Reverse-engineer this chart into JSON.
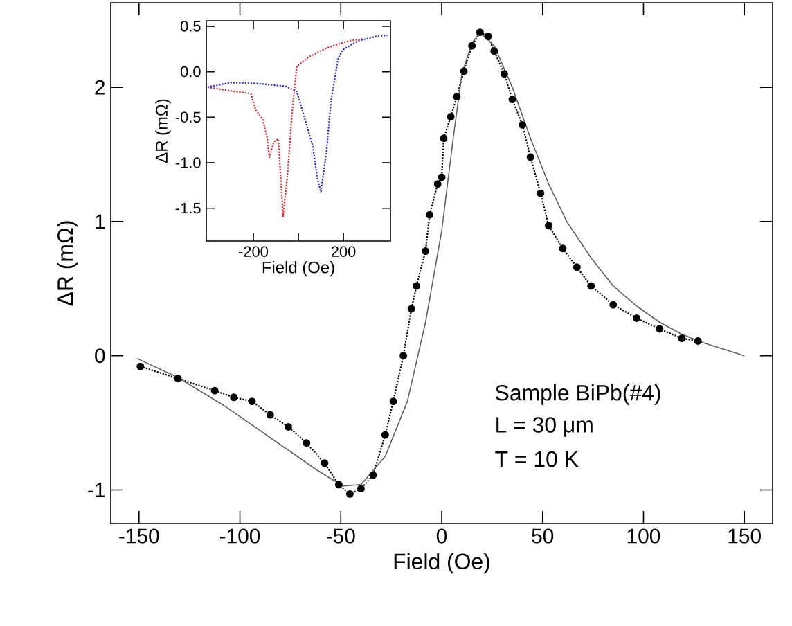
{
  "chart_data": [
    {
      "type": "line",
      "xlabel": "Field (Oe)",
      "ylabel": "ΔR (mΩ)",
      "xlim": [
        -164,
        164
      ],
      "ylim": [
        -1.25,
        2.63
      ],
      "xticks": [
        -150,
        -100,
        -50,
        0,
        50,
        100,
        150
      ],
      "yticks": [
        -1,
        0,
        1,
        2
      ],
      "annotations": [
        "Sample BiPb(#4)",
        "L = 30 μm",
        "T = 10 K"
      ],
      "series": [
        {
          "color": "#000000",
          "marker": "circle",
          "line_style": "dotted",
          "x": [
            -149.3,
            -130.7,
            -112.5,
            -103,
            -94,
            -85,
            -76,
            -67,
            -58,
            -51,
            -45.5,
            -40,
            -34,
            -28,
            -24,
            -19,
            -15,
            -12.5,
            -8,
            -6,
            -2,
            0,
            1,
            4.5,
            7.5,
            11,
            15,
            19,
            23,
            26,
            31,
            35,
            40,
            44,
            49,
            53,
            60,
            67,
            74,
            85,
            96.6,
            108,
            119,
            127
          ],
          "values": [
            -0.08,
            -0.17,
            -0.26,
            -0.31,
            -0.34,
            -0.44,
            -0.53,
            -0.65,
            -0.8,
            -0.96,
            -1.03,
            -0.99,
            -0.89,
            -0.59,
            -0.34,
            0.0,
            0.35,
            0.52,
            0.78,
            1.05,
            1.28,
            1.33,
            1.62,
            1.78,
            1.93,
            2.12,
            2.31,
            2.41,
            2.38,
            2.27,
            2.1,
            1.91,
            1.72,
            1.48,
            1.21,
            0.97,
            0.8,
            0.66,
            0.52,
            0.38,
            0.28,
            0.2,
            0.13,
            0.11
          ]
        },
        {
          "color": "#606060",
          "marker": "none",
          "line_style": "solid",
          "x": [
            -151,
            -131,
            -108,
            -85,
            -62,
            -49,
            -40,
            -28,
            -17,
            -8,
            0,
            5.7,
            10,
            15,
            19,
            26,
            35,
            44,
            53,
            62,
            74,
            85,
            96.6,
            108,
            119,
            131,
            150
          ],
          "values": [
            -0.02,
            -0.16,
            -0.37,
            -0.61,
            -0.85,
            -0.97,
            -0.96,
            -0.75,
            -0.34,
            0.25,
            0.93,
            1.62,
            2.1,
            2.33,
            2.41,
            2.31,
            2.0,
            1.62,
            1.28,
            1.0,
            0.73,
            0.52,
            0.37,
            0.25,
            0.16,
            0.09,
            0.0
          ]
        }
      ]
    },
    {
      "type": "line",
      "xlabel": "Field (Oe)",
      "ylabel": "ΔR (mΩ)",
      "xlim": [
        -409,
        409
      ],
      "ylim": [
        -1.86,
        0.56
      ],
      "xticks": [
        -200,
        {
          "value": 0,
          "label": null
        },
        200
      ],
      "yticks": [
        {
          "value": -1.5,
          "label": "-1.5"
        },
        {
          "value": -1.0,
          "label": "-1.0"
        },
        {
          "value": -0.5,
          "label": "-0.5"
        },
        {
          "value": 0.0,
          "label": "0.0"
        },
        {
          "value": 0.5,
          "label": "0.5"
        }
      ],
      "series": [
        {
          "color": "#d03030",
          "line_style": "dotted",
          "x": [
            -403,
            -302,
            -211,
            -190,
            -159,
            -139,
            -129,
            -109,
            -89,
            -68,
            -48,
            -27,
            -7,
            44,
            125,
            186,
            226,
            287
          ],
          "values": [
            -0.17,
            -0.21,
            -0.24,
            -0.42,
            -0.52,
            -0.72,
            -0.94,
            -0.77,
            -0.74,
            -1.59,
            -1.12,
            -0.42,
            0.06,
            0.16,
            0.26,
            0.31,
            0.34,
            0.36
          ]
        },
        {
          "color": "#3030c0",
          "line_style": "dotted",
          "x": [
            -403,
            -302,
            -180,
            -58,
            -7,
            23,
            64,
            84,
            100,
            125,
            145,
            176,
            196,
            267,
            348,
            395
          ],
          "values": [
            -0.17,
            -0.12,
            -0.13,
            -0.16,
            -0.22,
            -0.47,
            -0.82,
            -1.17,
            -1.32,
            -0.87,
            -0.32,
            0.14,
            0.24,
            0.34,
            0.39,
            0.4
          ]
        }
      ]
    }
  ]
}
